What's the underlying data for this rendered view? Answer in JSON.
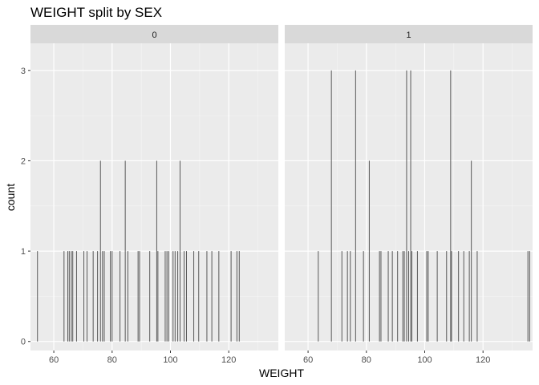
{
  "chart_data": {
    "type": "bar",
    "title": "WEIGHT split by SEX",
    "xlabel": "WEIGHT",
    "ylabel": "count",
    "xlim": [
      52,
      137
    ],
    "ylim": [
      -0.1,
      3.3
    ],
    "x_ticks": [
      60,
      80,
      100,
      120
    ],
    "y_ticks": [
      0,
      1,
      2,
      3
    ],
    "grid": true,
    "bar_color": "#595959",
    "panel_background": "#ebebeb",
    "strip_background": "#d9d9d9",
    "panels": [
      {
        "label": "0",
        "bars": [
          {
            "x": 54.4,
            "count": 1
          },
          {
            "x": 63.5,
            "count": 1
          },
          {
            "x": 64.8,
            "count": 1
          },
          {
            "x": 65.3,
            "count": 1
          },
          {
            "x": 66.0,
            "count": 1
          },
          {
            "x": 66.5,
            "count": 1
          },
          {
            "x": 67.8,
            "count": 1
          },
          {
            "x": 70.3,
            "count": 1
          },
          {
            "x": 71.4,
            "count": 1
          },
          {
            "x": 73.5,
            "count": 1
          },
          {
            "x": 75.0,
            "count": 1
          },
          {
            "x": 76.0,
            "count": 2
          },
          {
            "x": 76.7,
            "count": 1
          },
          {
            "x": 77.3,
            "count": 1
          },
          {
            "x": 79.4,
            "count": 1
          },
          {
            "x": 80.0,
            "count": 1
          },
          {
            "x": 82.7,
            "count": 1
          },
          {
            "x": 84.5,
            "count": 2
          },
          {
            "x": 85.4,
            "count": 1
          },
          {
            "x": 88.9,
            "count": 1
          },
          {
            "x": 89.4,
            "count": 1
          },
          {
            "x": 92.9,
            "count": 1
          },
          {
            "x": 95.3,
            "count": 2
          },
          {
            "x": 95.7,
            "count": 1
          },
          {
            "x": 98.2,
            "count": 1
          },
          {
            "x": 98.8,
            "count": 1
          },
          {
            "x": 99.4,
            "count": 1
          },
          {
            "x": 100.9,
            "count": 1
          },
          {
            "x": 101.6,
            "count": 1
          },
          {
            "x": 102.5,
            "count": 1
          },
          {
            "x": 103.3,
            "count": 2
          },
          {
            "x": 104.7,
            "count": 1
          },
          {
            "x": 105.5,
            "count": 1
          },
          {
            "x": 108.0,
            "count": 1
          },
          {
            "x": 109.7,
            "count": 1
          },
          {
            "x": 112.5,
            "count": 1
          },
          {
            "x": 114.2,
            "count": 1
          },
          {
            "x": 116.6,
            "count": 1
          },
          {
            "x": 120.8,
            "count": 1
          },
          {
            "x": 122.8,
            "count": 1
          },
          {
            "x": 123.6,
            "count": 1
          }
        ]
      },
      {
        "label": "1",
        "bars": [
          {
            "x": 63.5,
            "count": 1
          },
          {
            "x": 68.0,
            "count": 3
          },
          {
            "x": 71.6,
            "count": 1
          },
          {
            "x": 73.5,
            "count": 1
          },
          {
            "x": 74.5,
            "count": 1
          },
          {
            "x": 76.3,
            "count": 3
          },
          {
            "x": 79.0,
            "count": 1
          },
          {
            "x": 81.0,
            "count": 2
          },
          {
            "x": 84.5,
            "count": 1
          },
          {
            "x": 85.0,
            "count": 1
          },
          {
            "x": 87.5,
            "count": 1
          },
          {
            "x": 88.9,
            "count": 1
          },
          {
            "x": 90.7,
            "count": 1
          },
          {
            "x": 92.5,
            "count": 1
          },
          {
            "x": 93.0,
            "count": 1
          },
          {
            "x": 93.8,
            "count": 3
          },
          {
            "x": 94.5,
            "count": 1
          },
          {
            "x": 95.2,
            "count": 3
          },
          {
            "x": 95.6,
            "count": 1
          },
          {
            "x": 97.5,
            "count": 1
          },
          {
            "x": 100.7,
            "count": 1
          },
          {
            "x": 101.2,
            "count": 1
          },
          {
            "x": 104.3,
            "count": 1
          },
          {
            "x": 107.5,
            "count": 1
          },
          {
            "x": 108.9,
            "count": 3
          },
          {
            "x": 109.2,
            "count": 1
          },
          {
            "x": 111.6,
            "count": 1
          },
          {
            "x": 113.4,
            "count": 1
          },
          {
            "x": 115.3,
            "count": 1
          },
          {
            "x": 116.0,
            "count": 2
          },
          {
            "x": 118.0,
            "count": 1
          },
          {
            "x": 135.4,
            "count": 1
          },
          {
            "x": 136.0,
            "count": 1
          }
        ]
      }
    ]
  }
}
